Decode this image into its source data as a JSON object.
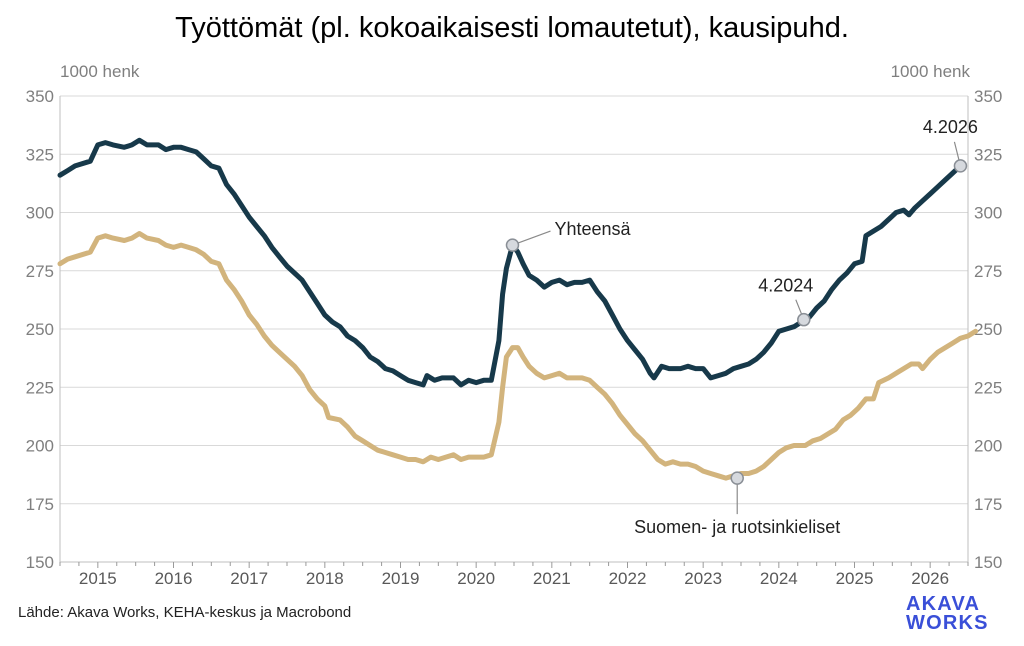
{
  "chart_data": {
    "type": "line",
    "title": "Työttömät (pl. kokoaikaisesti lomautetut), kausipuhd.",
    "ylabel_left": "1000 henk",
    "ylabel_right": "1000 henk",
    "ylim": [
      150,
      350
    ],
    "yticks": [
      150,
      175,
      200,
      225,
      250,
      275,
      300,
      325,
      350
    ],
    "xlim": [
      2014.5,
      2026.5
    ],
    "xticks": [
      "2015",
      "2016",
      "2017",
      "2018",
      "2019",
      "2020",
      "2021",
      "2022",
      "2023",
      "2024",
      "2025",
      "2026"
    ],
    "grid": "horizontal",
    "source": "Lähde: Akava Works, KEHA-keskus ja Macrobond",
    "series": [
      {
        "name": "Yhteensä",
        "color": "#17394a",
        "points": [
          [
            2014.5,
            316
          ],
          [
            2014.6,
            318
          ],
          [
            2014.7,
            320
          ],
          [
            2014.9,
            322
          ],
          [
            2015.0,
            329
          ],
          [
            2015.1,
            330
          ],
          [
            2015.2,
            329
          ],
          [
            2015.35,
            328
          ],
          [
            2015.45,
            329
          ],
          [
            2015.55,
            331
          ],
          [
            2015.65,
            329
          ],
          [
            2015.8,
            329
          ],
          [
            2015.9,
            327
          ],
          [
            2016.0,
            328
          ],
          [
            2016.1,
            328
          ],
          [
            2016.2,
            327
          ],
          [
            2016.3,
            326
          ],
          [
            2016.4,
            323
          ],
          [
            2016.5,
            320
          ],
          [
            2016.6,
            319
          ],
          [
            2016.7,
            312
          ],
          [
            2016.8,
            308
          ],
          [
            2016.9,
            303
          ],
          [
            2017.0,
            298
          ],
          [
            2017.1,
            294
          ],
          [
            2017.2,
            290
          ],
          [
            2017.3,
            285
          ],
          [
            2017.4,
            281
          ],
          [
            2017.5,
            277
          ],
          [
            2017.6,
            274
          ],
          [
            2017.7,
            271
          ],
          [
            2017.8,
            266
          ],
          [
            2017.9,
            261
          ],
          [
            2018.0,
            256
          ],
          [
            2018.1,
            253
          ],
          [
            2018.2,
            251
          ],
          [
            2018.3,
            247
          ],
          [
            2018.4,
            245
          ],
          [
            2018.5,
            242
          ],
          [
            2018.6,
            238
          ],
          [
            2018.7,
            236
          ],
          [
            2018.8,
            233
          ],
          [
            2018.9,
            232
          ],
          [
            2019.0,
            230
          ],
          [
            2019.1,
            228
          ],
          [
            2019.2,
            227
          ],
          [
            2019.3,
            226
          ],
          [
            2019.35,
            230
          ],
          [
            2019.45,
            228
          ],
          [
            2019.55,
            229
          ],
          [
            2019.7,
            229
          ],
          [
            2019.8,
            226
          ],
          [
            2019.9,
            228
          ],
          [
            2020.0,
            227
          ],
          [
            2020.1,
            228
          ],
          [
            2020.2,
            228
          ],
          [
            2020.3,
            245
          ],
          [
            2020.35,
            265
          ],
          [
            2020.4,
            276
          ],
          [
            2020.48,
            286
          ],
          [
            2020.55,
            283
          ],
          [
            2020.62,
            278
          ],
          [
            2020.7,
            273
          ],
          [
            2020.8,
            271
          ],
          [
            2020.9,
            268
          ],
          [
            2021.0,
            270
          ],
          [
            2021.1,
            271
          ],
          [
            2021.2,
            269
          ],
          [
            2021.3,
            270
          ],
          [
            2021.4,
            270
          ],
          [
            2021.5,
            271
          ],
          [
            2021.6,
            266
          ],
          [
            2021.7,
            262
          ],
          [
            2021.8,
            256
          ],
          [
            2021.9,
            250
          ],
          [
            2022.0,
            245
          ],
          [
            2022.1,
            241
          ],
          [
            2022.2,
            237
          ],
          [
            2022.3,
            231
          ],
          [
            2022.35,
            229
          ],
          [
            2022.45,
            234
          ],
          [
            2022.55,
            233
          ],
          [
            2022.7,
            233
          ],
          [
            2022.8,
            234
          ],
          [
            2022.9,
            233
          ],
          [
            2023.0,
            233
          ],
          [
            2023.1,
            229
          ],
          [
            2023.2,
            230
          ],
          [
            2023.3,
            231
          ],
          [
            2023.4,
            233
          ],
          [
            2023.5,
            234
          ],
          [
            2023.6,
            235
          ],
          [
            2023.7,
            237
          ],
          [
            2023.8,
            240
          ],
          [
            2023.9,
            244
          ],
          [
            2024.0,
            249
          ],
          [
            2024.1,
            250
          ],
          [
            2024.2,
            251
          ],
          [
            2024.3,
            253
          ],
          [
            2024.4,
            255
          ],
          [
            2024.5,
            259
          ],
          [
            2024.6,
            262
          ],
          [
            2024.7,
            267
          ],
          [
            2024.8,
            271
          ],
          [
            2024.9,
            274
          ],
          [
            2025.0,
            278
          ],
          [
            2025.1,
            279
          ],
          [
            2025.15,
            290
          ],
          [
            2025.25,
            292
          ],
          [
            2025.35,
            294
          ],
          [
            2025.45,
            297
          ],
          [
            2025.55,
            300
          ],
          [
            2025.65,
            301
          ],
          [
            2025.72,
            299
          ],
          [
            2025.8,
            302
          ],
          [
            2025.9,
            305
          ],
          [
            2026.0,
            308
          ],
          [
            2026.1,
            311
          ],
          [
            2026.2,
            314
          ],
          [
            2026.3,
            317
          ],
          [
            2026.4,
            320
          ]
        ]
      },
      {
        "name": "Suomen- ja ruotsinkieliset",
        "color": "#d2b47d",
        "points": [
          [
            2014.5,
            278
          ],
          [
            2014.6,
            280
          ],
          [
            2014.7,
            281
          ],
          [
            2014.9,
            283
          ],
          [
            2015.0,
            289
          ],
          [
            2015.1,
            290
          ],
          [
            2015.2,
            289
          ],
          [
            2015.35,
            288
          ],
          [
            2015.45,
            289
          ],
          [
            2015.55,
            291
          ],
          [
            2015.65,
            289
          ],
          [
            2015.8,
            288
          ],
          [
            2015.9,
            286
          ],
          [
            2016.0,
            285
          ],
          [
            2016.1,
            286
          ],
          [
            2016.2,
            285
          ],
          [
            2016.3,
            284
          ],
          [
            2016.4,
            282
          ],
          [
            2016.5,
            279
          ],
          [
            2016.6,
            278
          ],
          [
            2016.7,
            271
          ],
          [
            2016.8,
            267
          ],
          [
            2016.9,
            262
          ],
          [
            2017.0,
            256
          ],
          [
            2017.1,
            252
          ],
          [
            2017.2,
            247
          ],
          [
            2017.3,
            243
          ],
          [
            2017.4,
            240
          ],
          [
            2017.5,
            237
          ],
          [
            2017.6,
            234
          ],
          [
            2017.7,
            230
          ],
          [
            2017.8,
            224
          ],
          [
            2017.9,
            220
          ],
          [
            2018.0,
            217
          ],
          [
            2018.05,
            212
          ],
          [
            2018.2,
            211
          ],
          [
            2018.3,
            208
          ],
          [
            2018.4,
            204
          ],
          [
            2018.5,
            202
          ],
          [
            2018.6,
            200
          ],
          [
            2018.7,
            198
          ],
          [
            2018.8,
            197
          ],
          [
            2018.9,
            196
          ],
          [
            2019.0,
            195
          ],
          [
            2019.1,
            194
          ],
          [
            2019.2,
            194
          ],
          [
            2019.3,
            193
          ],
          [
            2019.4,
            195
          ],
          [
            2019.5,
            194
          ],
          [
            2019.6,
            195
          ],
          [
            2019.7,
            196
          ],
          [
            2019.8,
            194
          ],
          [
            2019.9,
            195
          ],
          [
            2020.0,
            195
          ],
          [
            2020.1,
            195
          ],
          [
            2020.2,
            196
          ],
          [
            2020.3,
            210
          ],
          [
            2020.35,
            225
          ],
          [
            2020.4,
            238
          ],
          [
            2020.48,
            242
          ],
          [
            2020.55,
            242
          ],
          [
            2020.62,
            238
          ],
          [
            2020.7,
            234
          ],
          [
            2020.8,
            231
          ],
          [
            2020.9,
            229
          ],
          [
            2021.0,
            230
          ],
          [
            2021.1,
            231
          ],
          [
            2021.2,
            229
          ],
          [
            2021.3,
            229
          ],
          [
            2021.4,
            229
          ],
          [
            2021.5,
            228
          ],
          [
            2021.6,
            225
          ],
          [
            2021.7,
            222
          ],
          [
            2021.8,
            218
          ],
          [
            2021.9,
            213
          ],
          [
            2022.0,
            209
          ],
          [
            2022.1,
            205
          ],
          [
            2022.2,
            202
          ],
          [
            2022.3,
            198
          ],
          [
            2022.4,
            194
          ],
          [
            2022.5,
            192
          ],
          [
            2022.6,
            193
          ],
          [
            2022.7,
            192
          ],
          [
            2022.8,
            192
          ],
          [
            2022.9,
            191
          ],
          [
            2023.0,
            189
          ],
          [
            2023.1,
            188
          ],
          [
            2023.2,
            187
          ],
          [
            2023.3,
            186
          ],
          [
            2023.4,
            187
          ],
          [
            2023.5,
            188
          ],
          [
            2023.6,
            188
          ],
          [
            2023.7,
            189
          ],
          [
            2023.8,
            191
          ],
          [
            2023.9,
            194
          ],
          [
            2024.0,
            197
          ],
          [
            2024.1,
            199
          ],
          [
            2024.2,
            200
          ],
          [
            2024.3,
            200
          ],
          [
            2024.35,
            200
          ],
          [
            2024.45,
            202
          ],
          [
            2024.55,
            203
          ],
          [
            2024.65,
            205
          ],
          [
            2024.75,
            207
          ],
          [
            2024.85,
            211
          ],
          [
            2024.95,
            213
          ],
          [
            2025.05,
            216
          ],
          [
            2025.15,
            220
          ],
          [
            2025.25,
            220
          ],
          [
            2025.32,
            227
          ],
          [
            2025.45,
            229
          ],
          [
            2025.55,
            231
          ],
          [
            2025.65,
            233
          ],
          [
            2025.75,
            235
          ],
          [
            2025.85,
            235
          ],
          [
            2025.9,
            233
          ],
          [
            2026.0,
            237
          ],
          [
            2026.1,
            240
          ],
          [
            2026.2,
            242
          ],
          [
            2026.3,
            244
          ],
          [
            2026.4,
            246
          ],
          [
            2026.5,
            247
          ],
          [
            2026.6,
            249
          ]
        ]
      }
    ],
    "annotations": [
      {
        "name": "annotation-yhteensa",
        "text": "Yhteensä",
        "x": 2020.48,
        "y": 286
      },
      {
        "name": "annotation-suomen-ruotsinkieliset",
        "text": "Suomen- ja ruotsinkieliset",
        "x": 2023.45,
        "y": 186
      },
      {
        "name": "annotation-4-2024",
        "text": "4.2024",
        "x": 2024.33,
        "y": 254
      },
      {
        "name": "annotation-4-2026",
        "text": "4.2026",
        "x": 2026.4,
        "y": 320
      }
    ]
  },
  "logo": {
    "line1": "AKAVA",
    "line2": "WORKS",
    "color": "#3a4fd8"
  }
}
